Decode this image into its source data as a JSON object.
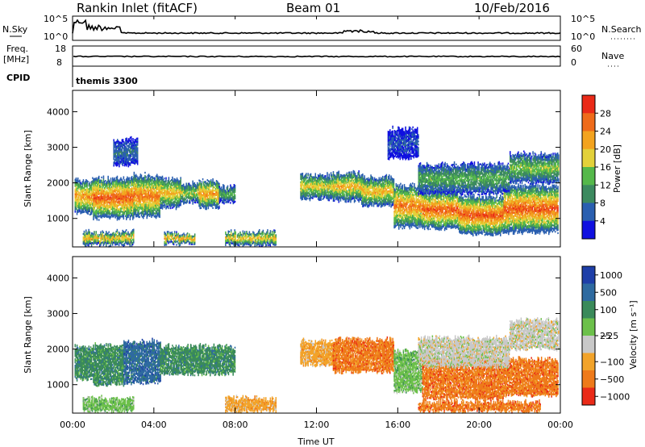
{
  "header": {
    "station": "Rankin Inlet (fitACF)",
    "beam": "Beam 01",
    "date": "10/Feb/2016"
  },
  "status_panels": {
    "nsky_label": "N.Sky",
    "nsky_ticks": [
      "10^5",
      "10^0"
    ],
    "nsearch_label": "N.Search",
    "nsearch_ticks": [
      "10^5",
      "10^0"
    ],
    "freq_label": "Freq.",
    "freq_unit": "[MHz]",
    "freq_ticks": [
      "18",
      "8"
    ],
    "nave_label": "Nave",
    "nave_ticks": [
      "60",
      "0"
    ],
    "cpid_label": "CPID",
    "cpid_value": "themis 3300"
  },
  "colors": {
    "power": [
      "#1010e0",
      "#2a5fb0",
      "#3c8a5f",
      "#55b84a",
      "#e3d13a",
      "#f3a31f",
      "#ef6b1a",
      "#ea2a18"
    ],
    "velocity": [
      "#1e3fa8",
      "#2e6aa0",
      "#3a8a5a",
      "#6cc04a",
      "#c8c8c8",
      "#f2a32a",
      "#ee7a1a",
      "#ea2a18"
    ]
  },
  "chart_data": [
    {
      "type": "heatmap",
      "panel": "power",
      "ylabel": "Slant Range [km]",
      "yticks": [
        "1000",
        "2000",
        "3000",
        "4000"
      ],
      "ylim": [
        200,
        4600
      ],
      "xlim": [
        0,
        24
      ],
      "colorbar_label": "Power [dB]",
      "colorbar_ticks": [
        "4",
        "8",
        "12",
        "16",
        "20",
        "24",
        "28"
      ],
      "colorbar_range": [
        0,
        32
      ],
      "bands": [
        {
          "t0": 0.1,
          "t1": 1.0,
          "r_lo": 1150,
          "r_hi": 2050,
          "core": 24
        },
        {
          "t0": 1.0,
          "t1": 3.0,
          "r_lo": 1000,
          "r_hi": 2100,
          "core": 28
        },
        {
          "t0": 3.0,
          "t1": 4.3,
          "r_lo": 1050,
          "r_hi": 2200,
          "core": 26
        },
        {
          "t0": 4.3,
          "t1": 5.3,
          "r_lo": 1300,
          "r_hi": 2100,
          "core": 22
        },
        {
          "t0": 5.3,
          "t1": 6.2,
          "r_lo": 1450,
          "r_hi": 1950,
          "core": 18
        },
        {
          "t0": 6.2,
          "t1": 7.2,
          "r_lo": 1300,
          "r_hi": 2050,
          "core": 24
        },
        {
          "t0": 7.2,
          "t1": 8.0,
          "r_lo": 1450,
          "r_hi": 1850,
          "core": 14
        },
        {
          "t0": 11.2,
          "t1": 12.8,
          "r_lo": 1550,
          "r_hi": 2200,
          "core": 20
        },
        {
          "t0": 12.8,
          "t1": 14.2,
          "r_lo": 1500,
          "r_hi": 2250,
          "core": 22
        },
        {
          "t0": 14.2,
          "t1": 15.8,
          "r_lo": 1350,
          "r_hi": 2150,
          "core": 22
        },
        {
          "t0": 15.8,
          "t1": 17.2,
          "r_lo": 750,
          "r_hi": 1900,
          "core": 26
        },
        {
          "t0": 17.2,
          "t1": 19.0,
          "r_lo": 700,
          "r_hi": 1750,
          "core": 28
        },
        {
          "t0": 19.0,
          "t1": 21.2,
          "r_lo": 550,
          "r_hi": 1600,
          "core": 28
        },
        {
          "t0": 21.2,
          "t1": 23.9,
          "r_lo": 600,
          "r_hi": 1900,
          "core": 28
        },
        {
          "t0": 17.0,
          "t1": 21.5,
          "r_lo": 1700,
          "r_hi": 2500,
          "core": 14
        },
        {
          "t0": 21.5,
          "t1": 23.9,
          "r_lo": 2000,
          "r_hi": 2800,
          "core": 16
        },
        {
          "t0": 0.5,
          "t1": 3.0,
          "r_lo": 250,
          "r_hi": 600,
          "core": 22
        },
        {
          "t0": 4.5,
          "t1": 6.0,
          "r_lo": 280,
          "r_hi": 550,
          "core": 24
        },
        {
          "t0": 7.5,
          "t1": 10.0,
          "r_lo": 250,
          "r_hi": 600,
          "core": 22
        },
        {
          "t0": 2.0,
          "t1": 3.2,
          "r_lo": 2500,
          "r_hi": 3200,
          "core": 8
        },
        {
          "t0": 15.5,
          "t1": 17.0,
          "r_lo": 2700,
          "r_hi": 3500,
          "core": 6
        }
      ]
    },
    {
      "type": "heatmap",
      "panel": "velocity",
      "ylabel": "Slant Range [km]",
      "yticks": [
        "1000",
        "2000",
        "3000",
        "4000"
      ],
      "ylim": [
        200,
        4600
      ],
      "xlim": [
        0,
        24
      ],
      "xlabel": "Time UT",
      "xticks": [
        "00:00",
        "04:00",
        "08:00",
        "12:00",
        "16:00",
        "20:00",
        "00:00"
      ],
      "colorbar_label": "Velocity [m s⁻¹]",
      "colorbar_ticks": [
        "1000",
        "500",
        "100",
        "25",
        "−25",
        "−100",
        "−500",
        "−1000"
      ],
      "bands": [
        {
          "t0": 0.1,
          "t1": 1.0,
          "r_lo": 1150,
          "r_hi": 2050,
          "bin": 2
        },
        {
          "t0": 1.0,
          "t1": 2.5,
          "r_lo": 1000,
          "r_hi": 2100,
          "bin": 2
        },
        {
          "t0": 2.5,
          "t1": 4.3,
          "r_lo": 1050,
          "r_hi": 2200,
          "bin": 1
        },
        {
          "t0": 4.3,
          "t1": 5.8,
          "r_lo": 1300,
          "r_hi": 2050,
          "bin": 2
        },
        {
          "t0": 5.8,
          "t1": 8.0,
          "r_lo": 1300,
          "r_hi": 2050,
          "bin": 2
        },
        {
          "t0": 11.2,
          "t1": 12.8,
          "r_lo": 1550,
          "r_hi": 2200,
          "bin": 5
        },
        {
          "t0": 12.8,
          "t1": 15.8,
          "r_lo": 1350,
          "r_hi": 2250,
          "bin": 6
        },
        {
          "t0": 15.8,
          "t1": 17.2,
          "r_lo": 800,
          "r_hi": 1900,
          "bin": 3
        },
        {
          "t0": 17.2,
          "t1": 21.2,
          "r_lo": 600,
          "r_hi": 1700,
          "bin": 6
        },
        {
          "t0": 21.2,
          "t1": 23.9,
          "r_lo": 700,
          "r_hi": 1700,
          "bin": 6
        },
        {
          "t0": 17.0,
          "t1": 21.5,
          "r_lo": 1500,
          "r_hi": 2300,
          "bin": 4
        },
        {
          "t0": 21.5,
          "t1": 23.9,
          "r_lo": 2000,
          "r_hi": 2800,
          "bin": 4
        },
        {
          "t0": 0.5,
          "t1": 3.0,
          "r_lo": 250,
          "r_hi": 600,
          "bin": 3
        },
        {
          "t0": 7.5,
          "t1": 10.0,
          "r_lo": 250,
          "r_hi": 600,
          "bin": 5
        },
        {
          "t0": 17.0,
          "t1": 23.0,
          "r_lo": 250,
          "r_hi": 500,
          "bin": 6
        }
      ]
    }
  ]
}
